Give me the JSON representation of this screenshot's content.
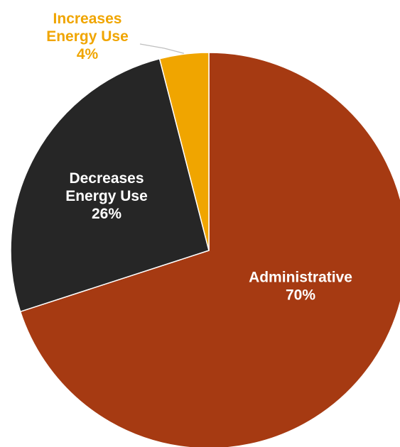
{
  "chart_data": {
    "type": "pie",
    "title": "",
    "slices": [
      {
        "label_lines": [
          "Administrative"
        ],
        "value": 70,
        "value_label": "70%",
        "color": "#a63a12",
        "label_color": "#ffffff"
      },
      {
        "label_lines": [
          "Decreases",
          "Energy Use"
        ],
        "value": 26,
        "value_label": "26%",
        "color": "#262626",
        "label_color": "#ffffff"
      },
      {
        "label_lines": [
          "Increases",
          "Energy Use"
        ],
        "value": 4,
        "value_label": "4%",
        "color": "#f0a500",
        "label_color": "#f0a500"
      }
    ],
    "start": "12 o'clock",
    "direction": "clockwise",
    "slice_border_color": "#ffffff",
    "leader_line_color": "#bfbfbf"
  }
}
